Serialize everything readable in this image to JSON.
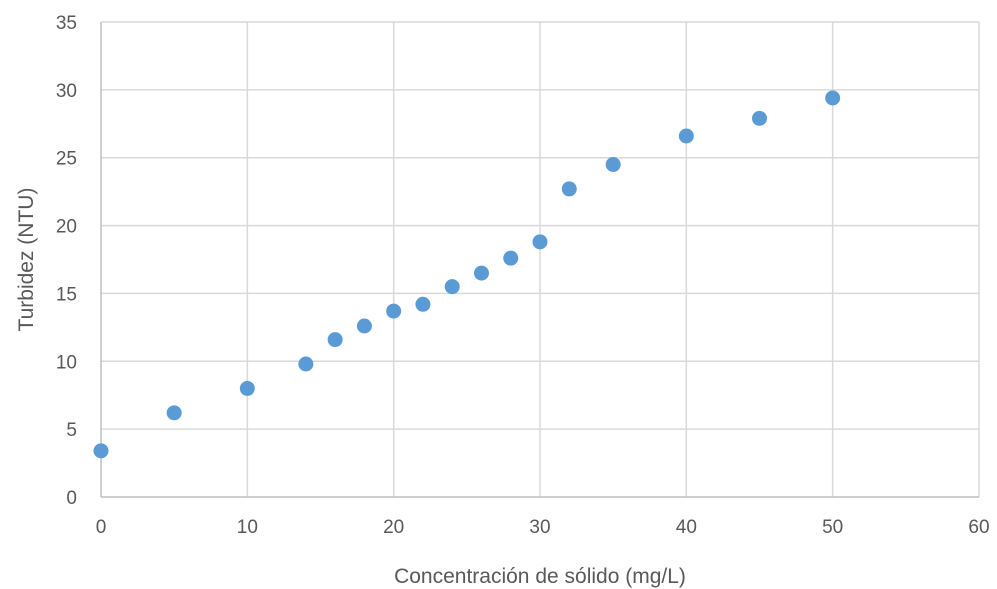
{
  "chart_data": {
    "type": "scatter",
    "title": "",
    "xlabel": "Concentración de sólido (mg/L)",
    "ylabel": "Turbidez (NTU)",
    "xlim": [
      0,
      60
    ],
    "ylim": [
      0,
      35
    ],
    "x_ticks": [
      0,
      10,
      20,
      30,
      40,
      50,
      60
    ],
    "y_ticks": [
      0,
      5,
      10,
      15,
      20,
      25,
      30,
      35
    ],
    "x_tick_labels": [
      "0",
      "10",
      "20",
      "30",
      "40",
      "50",
      "60"
    ],
    "y_tick_labels": [
      "0",
      "5",
      "10",
      "15",
      "20",
      "25",
      "30",
      "35"
    ],
    "grid": true,
    "legend": "none",
    "colors": {
      "marker": "#5B9BD5",
      "grid": "#D9D9D9",
      "axis_text": "#595959"
    },
    "series": [
      {
        "x": [
          0,
          5,
          10,
          14,
          16,
          18,
          20,
          22,
          24,
          26,
          28,
          30,
          32,
          35,
          40,
          45,
          50
        ],
        "y": [
          3.4,
          6.2,
          8.0,
          9.8,
          11.6,
          12.6,
          13.7,
          14.2,
          15.5,
          16.5,
          17.6,
          18.8,
          22.7,
          24.5,
          26.6,
          27.9,
          29.4
        ]
      }
    ]
  }
}
